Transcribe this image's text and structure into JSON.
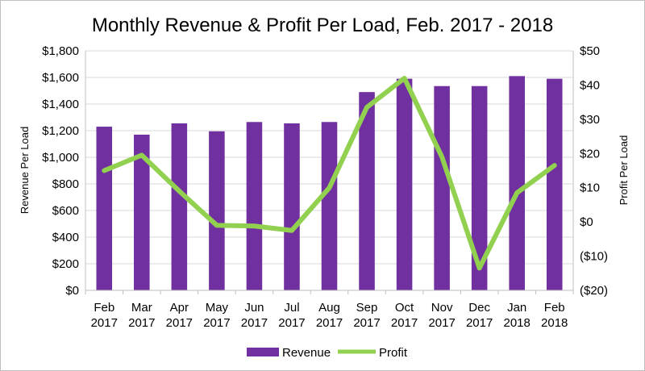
{
  "chart_data": {
    "type": "bar",
    "title": "Monthly Revenue & Profit Per Load, Feb. 2017 - 2018",
    "categories": [
      [
        "Feb",
        "2017"
      ],
      [
        "Mar",
        "2017"
      ],
      [
        "Apr",
        "2017"
      ],
      [
        "May",
        "2017"
      ],
      [
        "Jun",
        "2017"
      ],
      [
        "Jul",
        "2017"
      ],
      [
        "Aug",
        "2017"
      ],
      [
        "Sep",
        "2017"
      ],
      [
        "Oct",
        "2017"
      ],
      [
        "Nov",
        "2017"
      ],
      [
        "Dec",
        "2017"
      ],
      [
        "Jan",
        "2018"
      ],
      [
        "Feb",
        "2018"
      ]
    ],
    "ylabel": "Revenue Per Load",
    "y2label": "Profit Per Load",
    "ylim": [
      0,
      1800
    ],
    "y2lim": [
      -20,
      50
    ],
    "yticks": [
      "$0",
      "$200",
      "$400",
      "$600",
      "$800",
      "$1,000",
      "$1,200",
      "$1,400",
      "$1,600",
      "$1,800"
    ],
    "y2ticks": [
      "($20)",
      "($10)",
      "$0",
      "$10",
      "$20",
      "$30",
      "$40",
      "$50"
    ],
    "grid": true,
    "legend_position": "bottom",
    "series": [
      {
        "name": "Revenue",
        "type": "bar",
        "axis": "left",
        "color": "#7030a0",
        "values": [
          1230,
          1170,
          1255,
          1195,
          1265,
          1255,
          1265,
          1490,
          1590,
          1535,
          1535,
          1610,
          1590
        ]
      },
      {
        "name": "Profit",
        "type": "line",
        "axis": "right",
        "color": "#92d050",
        "values": [
          15,
          19.5,
          9,
          -1,
          -1.2,
          -2.5,
          10,
          33.5,
          42,
          19,
          -13.5,
          8.5,
          16.5
        ]
      }
    ]
  }
}
